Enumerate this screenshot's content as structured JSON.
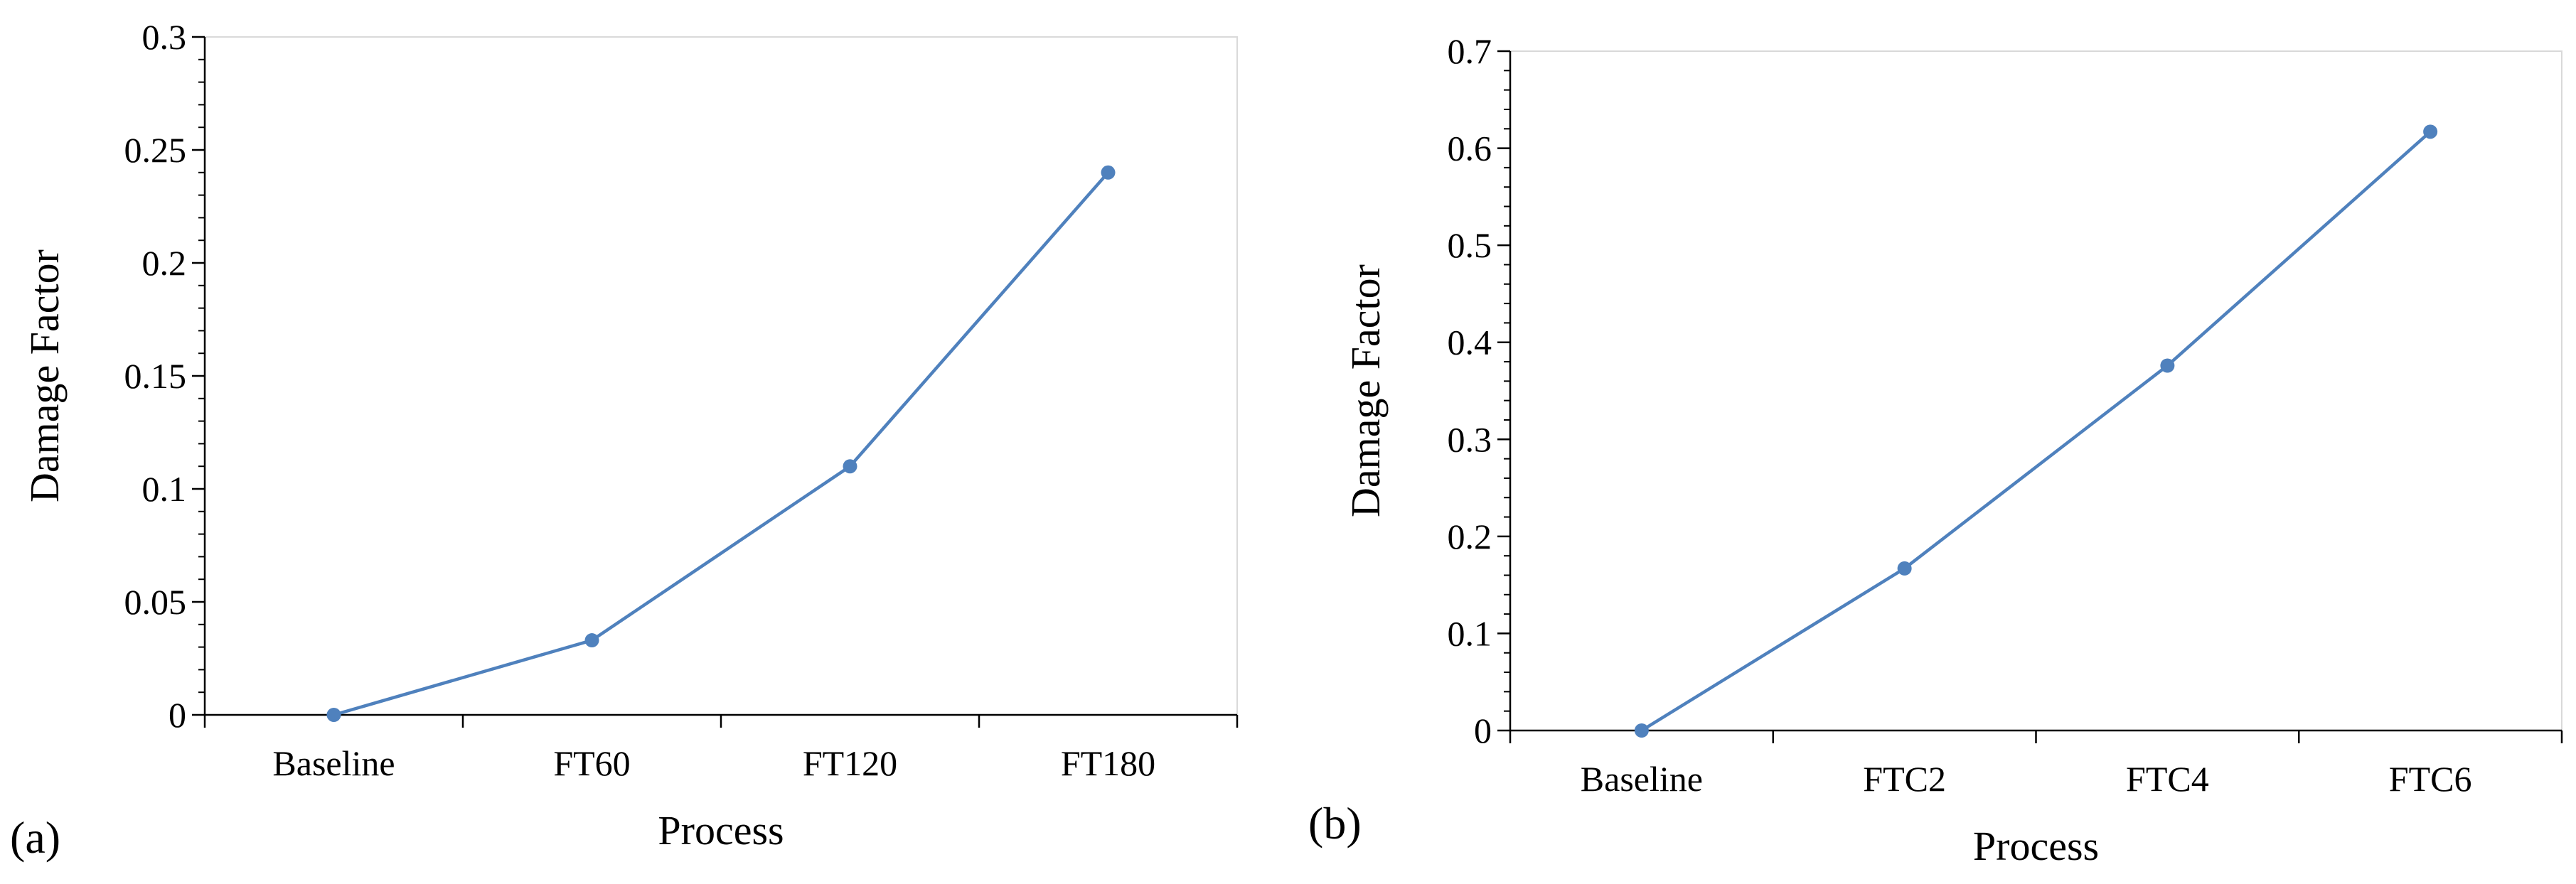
{
  "series_color": "#4f81bd",
  "chart_data": [
    {
      "type": "line",
      "panel_label": "(a)",
      "categories": [
        "Baseline",
        "FT60",
        "FT120",
        "FT180"
      ],
      "series": [
        {
          "name": "Damage Factor",
          "values": [
            0,
            0.033,
            0.11,
            0.24
          ]
        }
      ],
      "title": "",
      "xlabel": "Process",
      "ylabel": "Damage Factor",
      "ylim": [
        0,
        0.3
      ],
      "yticks": [
        0,
        0.05,
        0.1,
        0.15,
        0.2,
        0.25,
        0.3
      ],
      "ytick_labels": [
        "0",
        "0.05",
        "0.1",
        "0.15",
        "0.2",
        "0.25",
        "0.3"
      ],
      "grid": false,
      "legend": "none"
    },
    {
      "type": "line",
      "panel_label": "(b)",
      "categories": [
        "Baseline",
        "FTC2",
        "FTC4",
        "FTC6"
      ],
      "series": [
        {
          "name": "Damage Factor",
          "values": [
            0,
            0.167,
            0.376,
            0.617
          ]
        }
      ],
      "title": "",
      "xlabel": "Process",
      "ylabel": "Damage Factor",
      "ylim": [
        0,
        0.7
      ],
      "yticks": [
        0,
        0.1,
        0.2,
        0.3,
        0.4,
        0.5,
        0.6,
        0.7
      ],
      "ytick_labels": [
        "0",
        "0.1",
        "0.2",
        "0.3",
        "0.4",
        "0.5",
        "0.6",
        "0.7"
      ],
      "grid": false,
      "legend": "none"
    }
  ]
}
